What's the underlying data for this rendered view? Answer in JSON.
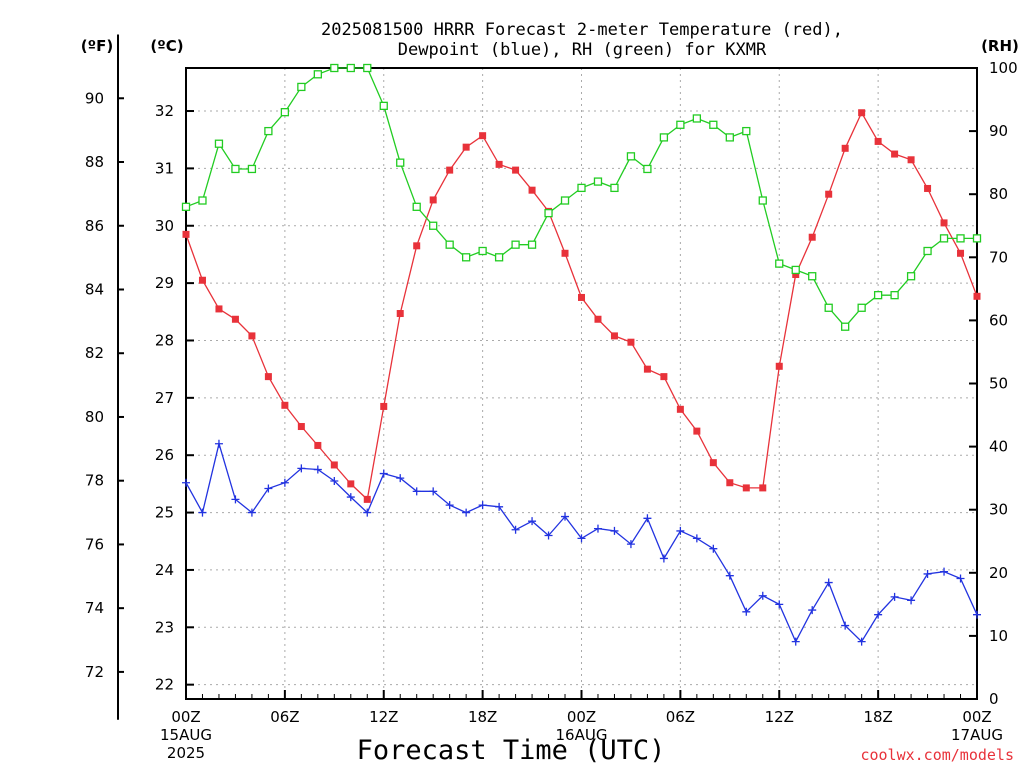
{
  "chart_data": {
    "type": "line",
    "title_line1": "2025081500 HRRR Forecast 2-meter Temperature (red),",
    "title_line2": "Dewpoint (blue), RH (green) for KXMR",
    "units": {
      "fahrenheit": "(ºF)",
      "celsius": "(ºC)",
      "rh": "(RH)"
    },
    "xlabel": "Forecast Time (UTC)",
    "credit": "coolwx.com/models",
    "grid": true,
    "x_hours_range": [
      0,
      48
    ],
    "celsius_range": [
      21.75,
      32.75
    ],
    "rh_range": [
      0,
      100
    ],
    "celsius_ticks": [
      "22",
      "23",
      "24",
      "25",
      "26",
      "27",
      "28",
      "29",
      "30",
      "31",
      "32"
    ],
    "fahrenheit_ticks": [
      "72",
      "74",
      "76",
      "78",
      "80",
      "82",
      "84",
      "86",
      "88",
      "90"
    ],
    "rh_ticks": [
      "0",
      "10",
      "20",
      "30",
      "40",
      "50",
      "60",
      "70",
      "80",
      "90",
      "100"
    ],
    "x_ticks": [
      {
        "hour": 0,
        "lines": [
          "00Z",
          "15AUG",
          "2025"
        ]
      },
      {
        "hour": 6,
        "lines": [
          "06Z"
        ]
      },
      {
        "hour": 12,
        "lines": [
          "12Z"
        ]
      },
      {
        "hour": 18,
        "lines": [
          "18Z"
        ]
      },
      {
        "hour": 24,
        "lines": [
          "00Z",
          "16AUG"
        ]
      },
      {
        "hour": 30,
        "lines": [
          "06Z"
        ]
      },
      {
        "hour": 36,
        "lines": [
          "12Z"
        ]
      },
      {
        "hour": 42,
        "lines": [
          "18Z"
        ]
      },
      {
        "hour": 48,
        "lines": [
          "00Z",
          "17AUG"
        ]
      }
    ],
    "series": [
      {
        "name": "Temperature",
        "unit": "C",
        "color": "#e8323a",
        "marker": "filled-square",
        "values": [
          29.85,
          29.05,
          28.55,
          28.37,
          28.08,
          27.37,
          26.87,
          26.5,
          26.17,
          25.83,
          25.5,
          25.23,
          26.85,
          28.47,
          29.65,
          30.45,
          30.97,
          31.37,
          31.57,
          31.07,
          30.97,
          30.62,
          30.25,
          29.52,
          28.75,
          28.37,
          28.08,
          27.97,
          27.5,
          27.37,
          26.8,
          26.42,
          25.87,
          25.52,
          25.43,
          25.43,
          27.55,
          29.15,
          29.8,
          30.55,
          31.35,
          31.97,
          31.47,
          31.25,
          31.15,
          30.65,
          30.05,
          29.52,
          28.77
        ]
      },
      {
        "name": "Dewpoint",
        "unit": "C",
        "color": "#2233e0",
        "marker": "plus",
        "values": [
          25.52,
          25.0,
          26.2,
          25.23,
          25.0,
          25.42,
          25.52,
          25.77,
          25.75,
          25.55,
          25.27,
          25.0,
          25.68,
          25.6,
          25.37,
          25.37,
          25.13,
          25.0,
          25.13,
          25.1,
          24.7,
          24.85,
          24.6,
          24.93,
          24.55,
          24.72,
          24.68,
          24.45,
          24.9,
          24.2,
          24.68,
          24.55,
          24.37,
          23.9,
          23.27,
          23.55,
          23.4,
          22.75,
          23.3,
          23.78,
          23.03,
          22.75,
          23.22,
          23.53,
          23.47,
          23.93,
          23.97,
          23.85,
          23.22
        ]
      },
      {
        "name": "RH",
        "unit": "%",
        "color": "#22cc22",
        "marker": "open-square",
        "values": [
          78.0,
          79.0,
          88.0,
          84.0,
          84.0,
          90.0,
          93.0,
          97.0,
          99.0,
          100.0,
          100.0,
          100.0,
          94.0,
          85.0,
          78.0,
          75.0,
          72.0,
          70.0,
          71.0,
          70.0,
          72.0,
          72.0,
          77.0,
          79.0,
          81.0,
          82.0,
          81.0,
          86.0,
          84.0,
          89.0,
          91.0,
          92.0,
          91.0,
          89.0,
          90.0,
          79.0,
          69.0,
          68.0,
          67.0,
          62.0,
          59.0,
          62.0,
          64.0,
          64.0,
          67.0,
          71.0,
          73.0,
          73.0,
          73.0
        ]
      }
    ]
  }
}
